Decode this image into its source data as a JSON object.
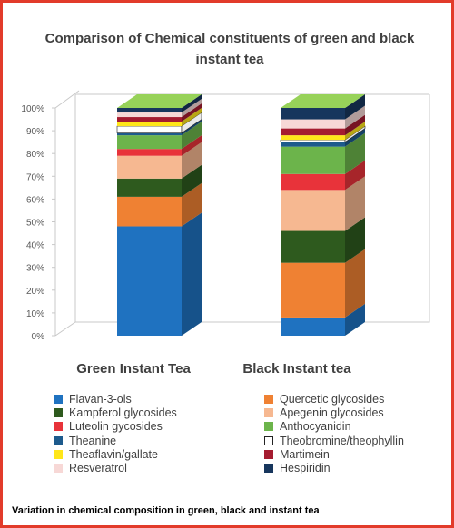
{
  "chart_data": {
    "type": "bar",
    "stacked": true,
    "percent": true,
    "three_d": true,
    "title": "Comparison of Chemical constituents of green and black instant tea",
    "categories": [
      "Green Instant Tea",
      "Black Instant tea"
    ],
    "ylim": [
      0,
      100
    ],
    "yticks": [
      "0%",
      "10%",
      "20%",
      "30%",
      "40%",
      "50%",
      "60%",
      "70%",
      "80%",
      "90%",
      "100%"
    ],
    "legend_position": "bottom",
    "grid": false,
    "series": [
      {
        "name": "Flavan-3-ols",
        "color": "#1f72c0",
        "values": [
          48,
          8
        ]
      },
      {
        "name": "Quercetic glycosides",
        "color": "#ef8133",
        "values": [
          13,
          24
        ]
      },
      {
        "name": "Kampferol glycosides",
        "color": "#2e5a1e",
        "values": [
          8,
          14
        ]
      },
      {
        "name": "Apegenin glycosides",
        "color": "#f6b891",
        "values": [
          10,
          18
        ]
      },
      {
        "name": "Luteolin gycosides",
        "color": "#e8333a",
        "values": [
          3,
          7
        ]
      },
      {
        "name": "Anthocyanidin",
        "color": "#6cb44b",
        "values": [
          6,
          12
        ]
      },
      {
        "name": "Theanine",
        "color": "#1d5a8c",
        "values": [
          1,
          2
        ]
      },
      {
        "name": "Theobromine/theophyllin",
        "color": "#ffffff",
        "values": [
          3,
          1
        ]
      },
      {
        "name": "Theaflavin/gallate",
        "color": "#ffe61a",
        "values": [
          2,
          2
        ]
      },
      {
        "name": "Martimein",
        "color": "#a51c30",
        "values": [
          2,
          3
        ]
      },
      {
        "name": "Resveratrol",
        "color": "#f7d8d6",
        "values": [
          2,
          4
        ]
      },
      {
        "name": "Hespiridin",
        "color": "#17365d",
        "values": [
          2,
          5
        ]
      }
    ]
  },
  "caption": "Variation in chemical composition in green, black and instant tea"
}
